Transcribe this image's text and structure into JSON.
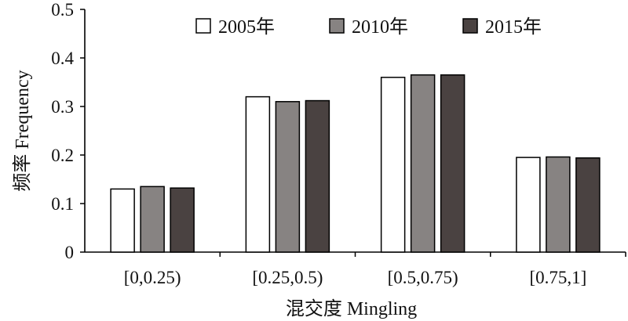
{
  "chart_data": {
    "type": "bar",
    "categories": [
      "[0,0.25)",
      "[0.25,0.5)",
      "[0.5,0.75)",
      "[0.75,1]"
    ],
    "series": [
      {
        "name": "2005年",
        "values": [
          0.13,
          0.32,
          0.36,
          0.195
        ],
        "color": "#ffffff"
      },
      {
        "name": "2010年",
        "values": [
          0.135,
          0.31,
          0.365,
          0.196
        ],
        "color": "#878382"
      },
      {
        "name": "2015年",
        "values": [
          0.132,
          0.312,
          0.365,
          0.194
        ],
        "color": "#4a4241"
      }
    ],
    "xlabel": "混交度 Mingling",
    "ylabel": "频率 Frequency",
    "ylim": [
      0,
      0.5
    ],
    "yticks": [
      "0",
      "0.1",
      "0.2",
      "0.3",
      "0.4",
      "0.5"
    ],
    "grid": false,
    "legend_position": "top"
  }
}
